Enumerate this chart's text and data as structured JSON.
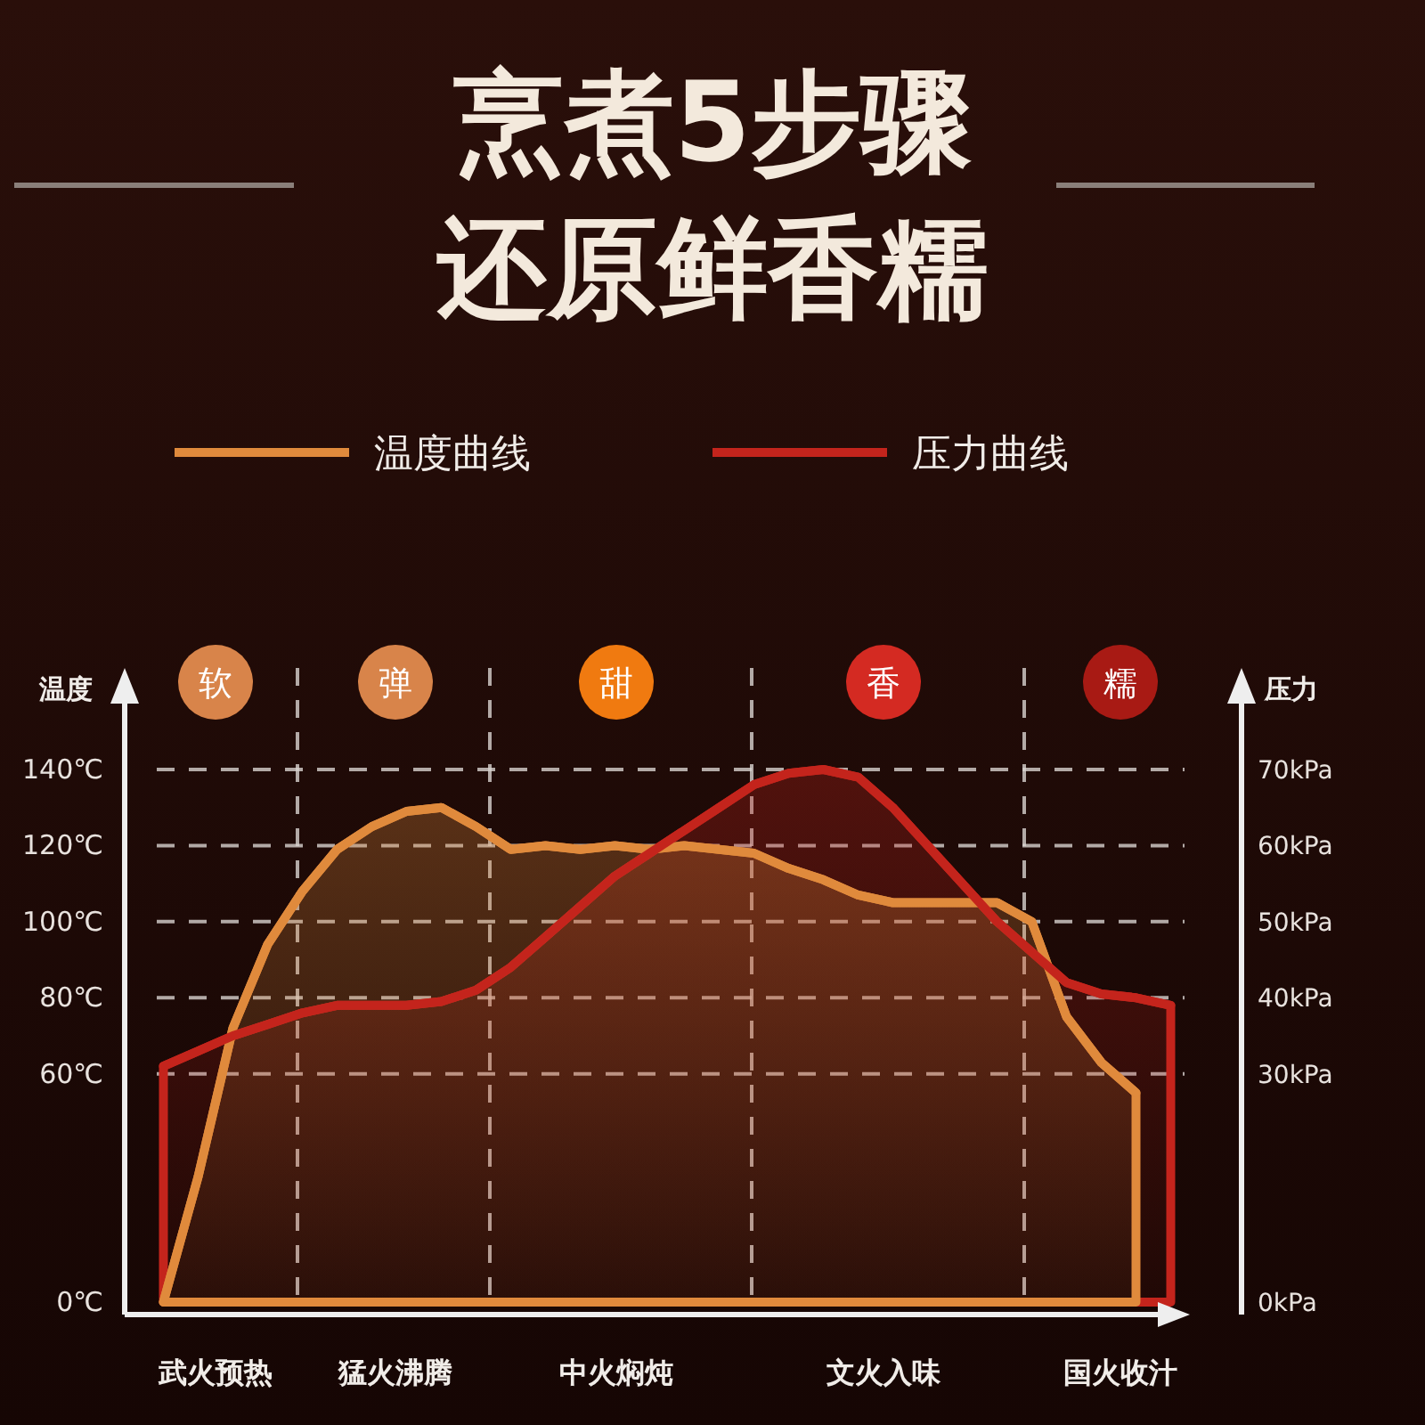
{
  "chart_data": {
    "type": "area",
    "title": "烹煮5步骤",
    "subtitle": "还原鲜香糯",
    "ylabel": "温度",
    "y2label": "压力",
    "categories": [
      null,
      null,
      null,
      null,
      null,
      null,
      null,
      null,
      null,
      null,
      null,
      null,
      null,
      null,
      null,
      null,
      null,
      null,
      null,
      null,
      null,
      null,
      null,
      null,
      null,
      null,
      null,
      null,
      null,
      null
    ],
    "series": [
      {
        "name": "温度曲线",
        "color": "#e08a3c",
        "values": [
          0,
          33,
          72,
          94,
          108,
          119,
          125,
          129,
          130,
          125,
          119,
          120,
          119,
          120,
          119,
          120,
          119,
          118,
          114,
          111,
          107,
          105,
          105,
          105,
          105,
          100,
          75,
          63,
          55,
          null
        ]
      },
      {
        "name": "压力曲线",
        "color": "#c4241c",
        "axis": "y2",
        "values": [
          31,
          33,
          35,
          36.5,
          38,
          39,
          39,
          39,
          39.5,
          41,
          44,
          48,
          52,
          56,
          59,
          62,
          65,
          68,
          69.5,
          70,
          69,
          65,
          60,
          55,
          50,
          46,
          42,
          40.5,
          40,
          39
        ]
      }
    ],
    "ylim": [
      0,
      140
    ],
    "yticks": [
      {
        "value": 0,
        "label": "0℃"
      },
      {
        "value": 60,
        "label": "60℃"
      },
      {
        "value": 80,
        "label": "80℃"
      },
      {
        "value": 100,
        "label": "100℃"
      },
      {
        "value": 120,
        "label": "120℃"
      },
      {
        "value": 140,
        "label": "140℃"
      }
    ],
    "y2lim": [
      0,
      70
    ],
    "y2ticks": [
      {
        "value": 0,
        "label": "0kPa"
      },
      {
        "value": 30,
        "label": "30kPa"
      },
      {
        "value": 40,
        "label": "40kPa"
      },
      {
        "value": 50,
        "label": "50kPa"
      },
      {
        "value": 60,
        "label": "60kPa"
      },
      {
        "value": 70,
        "label": "70kPa"
      }
    ],
    "grid": "y",
    "legend": "top",
    "annotations": [
      "软",
      "弹",
      "甜",
      "香",
      "糯",
      "武火预热",
      "猛火沸腾",
      "中火焖炖",
      "文火入味",
      "国火收汁"
    ]
  }
}
